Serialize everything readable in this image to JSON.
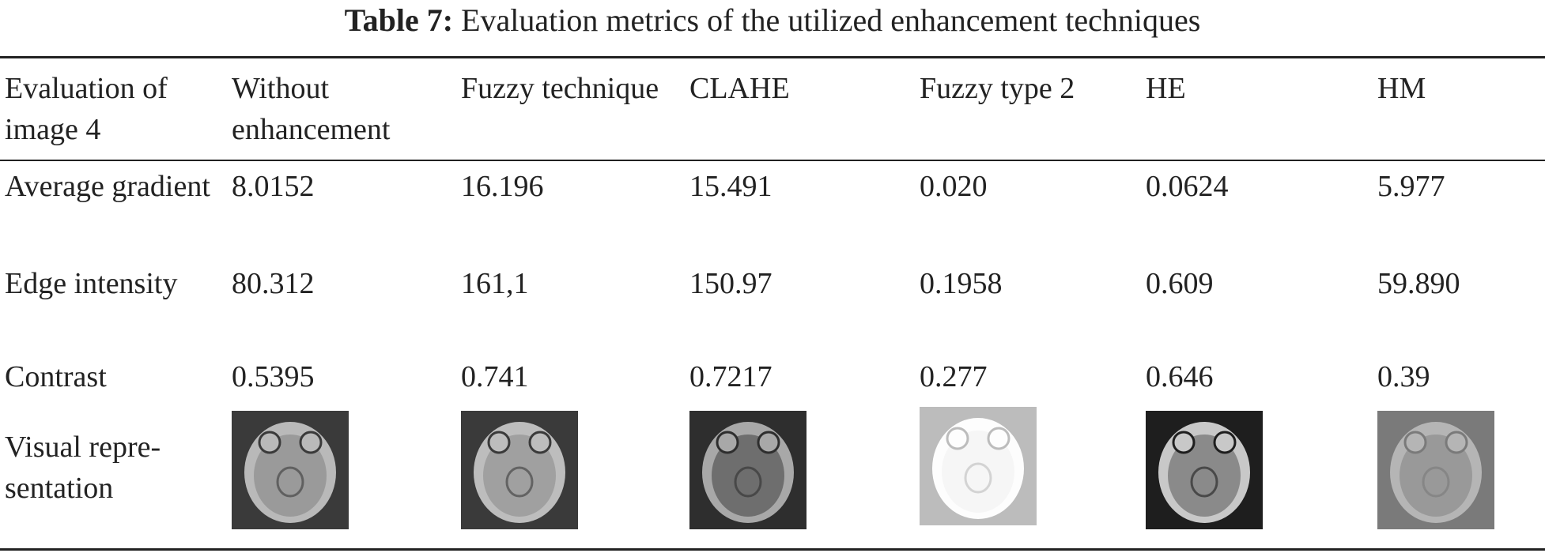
{
  "caption": {
    "label": "Table 7:",
    "text": "Evaluation metrics of the utilized enhancement techniques"
  },
  "table": {
    "header": [
      "Evaluation of image 4",
      "Without enhancement",
      "Fuzzy technique",
      "CLAHE",
      "Fuzzy type 2",
      "HE",
      "HM"
    ],
    "rows": [
      [
        "Average gradient",
        "8.0152",
        "16.196",
        "15.491",
        "0.020",
        "0.0624",
        "5.977"
      ],
      [
        "Edge intensity",
        "80.312",
        "161,1",
        "150.97",
        "0.1958",
        "0.609",
        "59.890"
      ],
      [
        "Contrast",
        "0.5395",
        "0.741",
        "0.7217",
        "0.277",
        "0.646",
        "0.39"
      ],
      [
        "Visual repre-sentation"
      ]
    ]
  }
}
